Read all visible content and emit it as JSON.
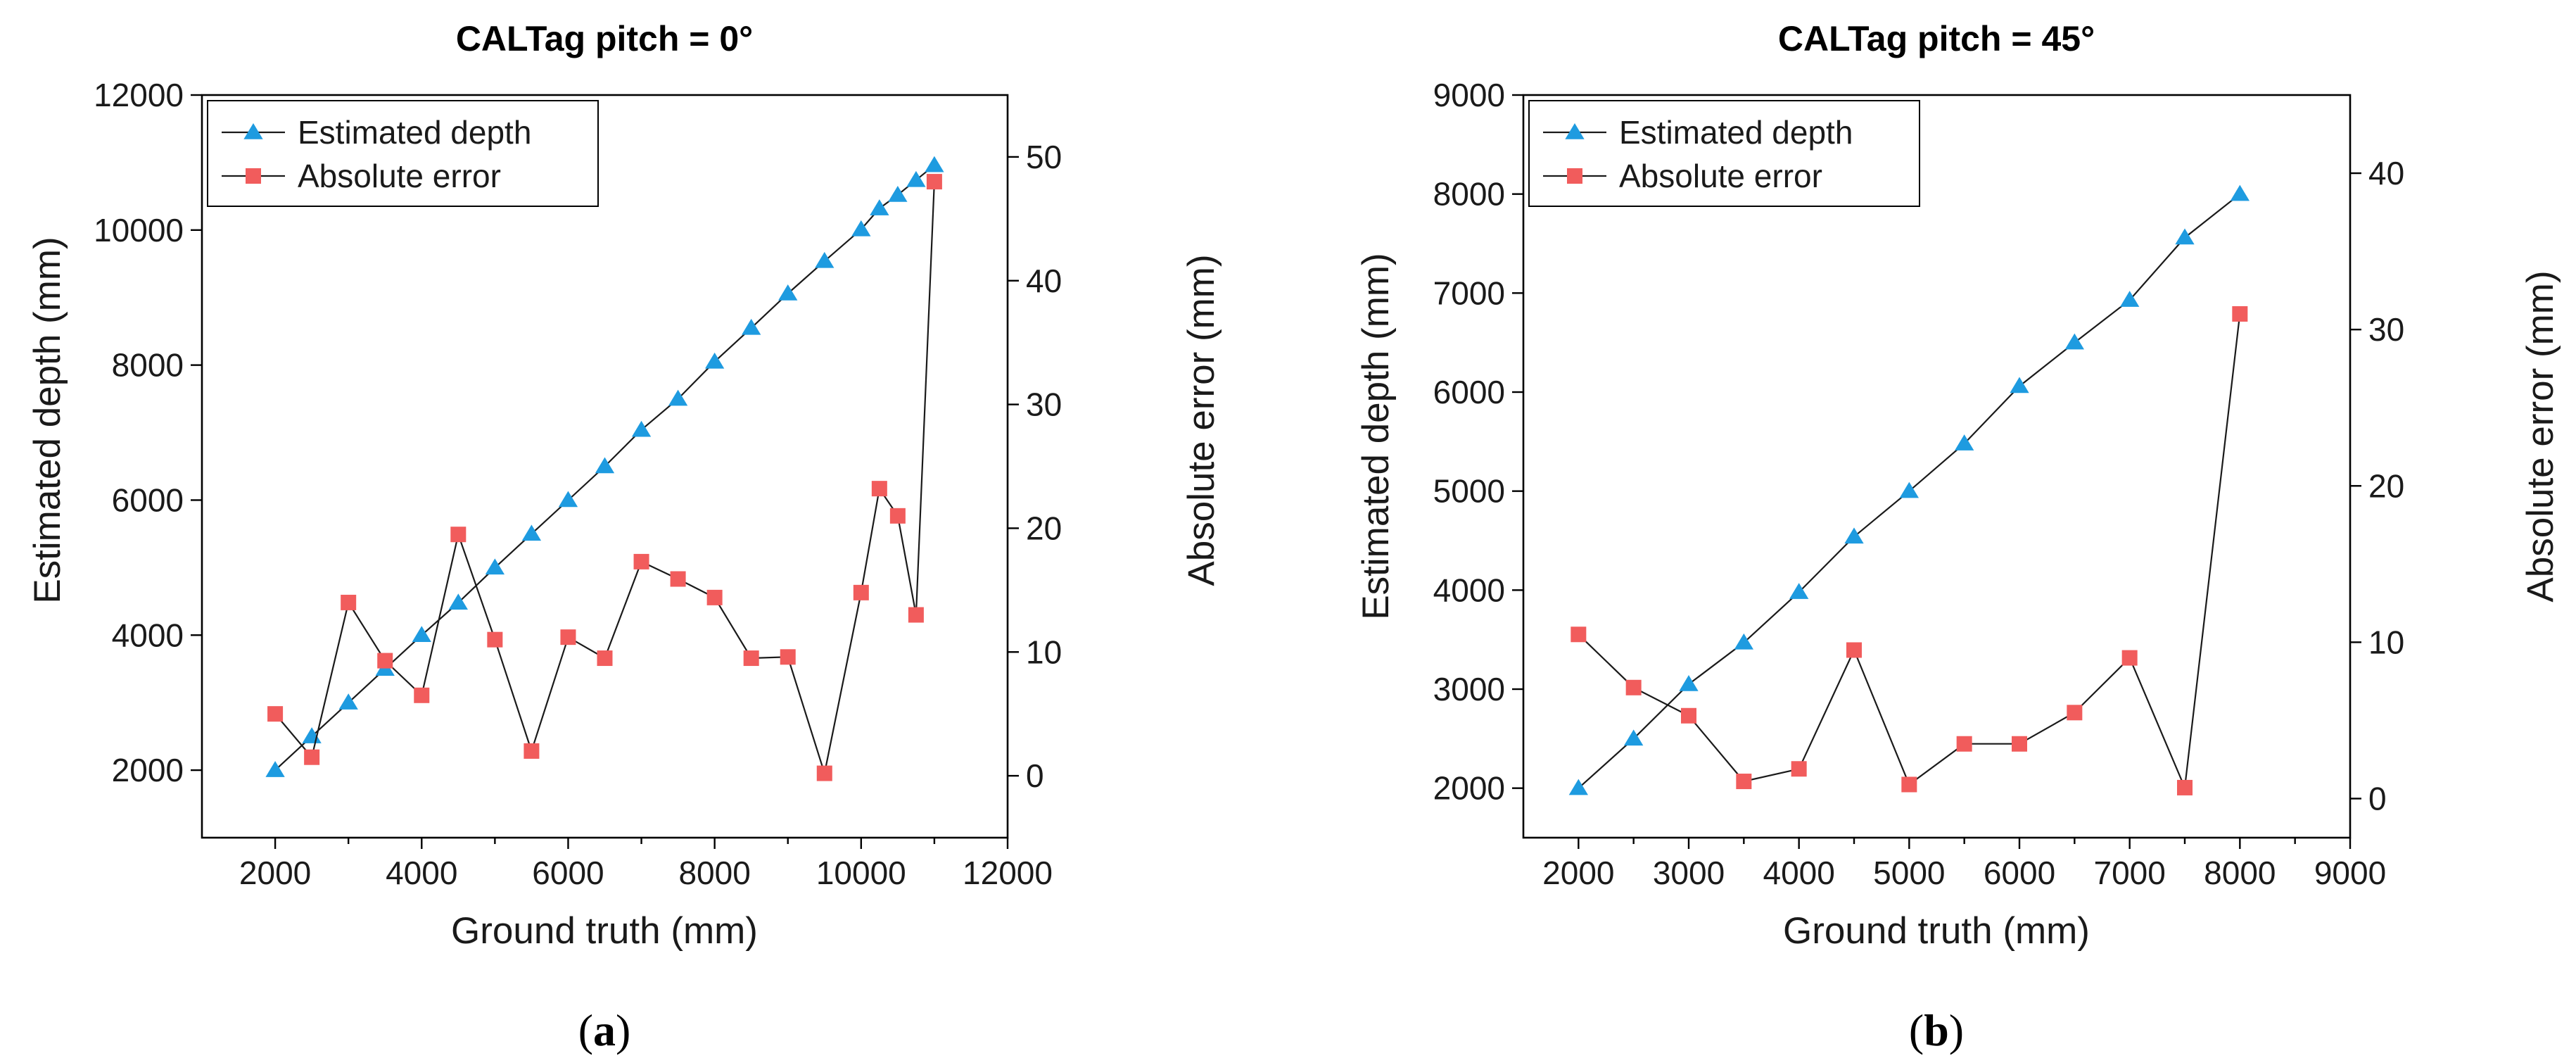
{
  "chart_data": [
    {
      "type": "line",
      "title": "CALTag pitch = 0°",
      "caption_letter": "a",
      "xlabel": "Ground truth (mm)",
      "ylabel": "Estimated depth (mm)",
      "y2label": "Absolute error (mm)",
      "xlim": [
        1000,
        12000
      ],
      "xticks": [
        2000,
        4000,
        6000,
        8000,
        10000,
        12000
      ],
      "ylim": [
        1000,
        12000
      ],
      "yticks": [
        2000,
        4000,
        6000,
        8000,
        10000,
        12000
      ],
      "y2lim": [
        -5,
        55
      ],
      "y2ticks": [
        0,
        10,
        20,
        30,
        40,
        50
      ],
      "legend_position": "top-left",
      "series": [
        {
          "name": "Estimated depth",
          "axis": "left",
          "marker": "triangle",
          "color": "#1e9be0",
          "x": [
            2000,
            2500,
            3000,
            3500,
            4000,
            4500,
            5000,
            5500,
            6000,
            6500,
            7000,
            7500,
            8000,
            8500,
            9000,
            9500,
            10000,
            10250,
            10500,
            10750,
            11000
          ],
          "y": [
            2000,
            2500,
            3000,
            3500,
            4000,
            4480,
            5000,
            5500,
            6000,
            6500,
            7040,
            7500,
            8050,
            8550,
            9060,
            9540,
            10010,
            10320,
            10520,
            10740,
            10960
          ]
        },
        {
          "name": "Absolute error",
          "axis": "right",
          "marker": "square",
          "color": "#f15c5c",
          "x": [
            2000,
            2500,
            3000,
            3500,
            4000,
            4500,
            5000,
            5500,
            6000,
            6500,
            7000,
            7500,
            8000,
            8500,
            9000,
            9500,
            10000,
            10250,
            10500,
            10750,
            11000
          ],
          "y": [
            5.0,
            1.5,
            14.0,
            9.3,
            6.5,
            19.5,
            11.0,
            2.0,
            11.2,
            9.5,
            17.3,
            15.9,
            14.4,
            9.5,
            9.6,
            0.2,
            14.8,
            23.2,
            21.0,
            13.0,
            48.0
          ]
        }
      ]
    },
    {
      "type": "line",
      "title": "CALTag pitch = 45°",
      "caption_letter": "b",
      "xlabel": "Ground truth (mm)",
      "ylabel": "Estimated depth (mm)",
      "y2label": "Absolute error (mm)",
      "xlim": [
        1500,
        9000
      ],
      "xticks": [
        2000,
        3000,
        4000,
        5000,
        6000,
        7000,
        8000,
        9000
      ],
      "ylim": [
        1500,
        9000
      ],
      "yticks": [
        2000,
        3000,
        4000,
        5000,
        6000,
        7000,
        8000,
        9000
      ],
      "y2lim": [
        -2.5,
        45
      ],
      "y2ticks": [
        0,
        10,
        20,
        30,
        40
      ],
      "legend_position": "top-left",
      "series": [
        {
          "name": "Estimated depth",
          "axis": "left",
          "marker": "triangle",
          "color": "#1e9be0",
          "x": [
            2000,
            2500,
            3000,
            3500,
            4000,
            4500,
            5000,
            5500,
            6000,
            6500,
            7000,
            7500,
            8000
          ],
          "y": [
            2000,
            2500,
            3050,
            3470,
            3980,
            4540,
            5000,
            5480,
            6060,
            6500,
            6930,
            7560,
            8000
          ]
        },
        {
          "name": "Absolute error",
          "axis": "right",
          "marker": "square",
          "color": "#f15c5c",
          "x": [
            2000,
            2500,
            3000,
            3500,
            4000,
            4500,
            5000,
            5500,
            6000,
            6500,
            7000,
            7500,
            8000
          ],
          "y": [
            10.5,
            7.1,
            5.3,
            1.1,
            1.9,
            9.5,
            0.9,
            3.5,
            3.5,
            5.5,
            9.0,
            0.7,
            31.0
          ]
        }
      ]
    }
  ]
}
